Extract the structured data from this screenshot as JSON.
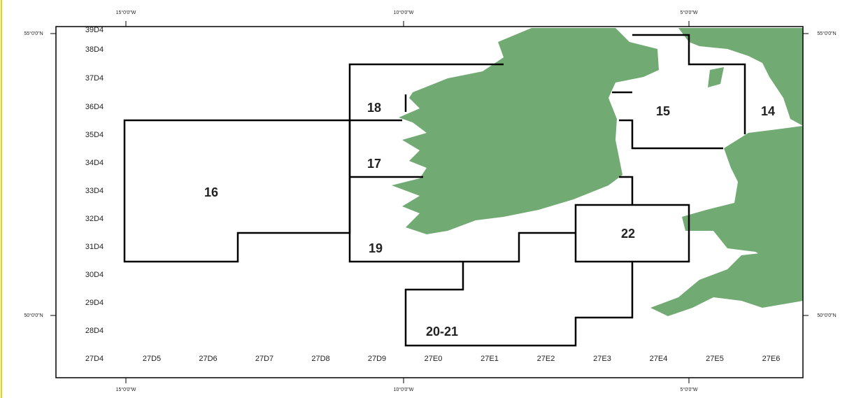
{
  "map": {
    "top_longitude_labels": [
      "15°0'0\"W",
      "10°0'0\"W",
      "5°0'0\"W"
    ],
    "bottom_longitude_labels": [
      "15°0'0\"W",
      "10°0'0\"W",
      "5°0'0\"W"
    ],
    "left_latitude_labels": [
      "55°0'0\"N",
      "50°0'0\"N"
    ],
    "right_latitude_labels": [
      "55°0'0\"N",
      "50°0'0\"N"
    ],
    "row_labels": [
      "39D4",
      "38D4",
      "37D4",
      "36D4",
      "35D4",
      "34D4",
      "33D4",
      "32D4",
      "31D4",
      "30D4",
      "29D4",
      "28D4",
      "27D4"
    ],
    "column_labels": [
      "27D5",
      "27D6",
      "27D7",
      "27D8",
      "27D9",
      "27E0",
      "27E1",
      "27E2",
      "27E3",
      "27E4",
      "27E5",
      "27E6"
    ],
    "areas": [
      "16",
      "18",
      "17",
      "19",
      "20-21",
      "22",
      "15",
      "14"
    ]
  }
}
